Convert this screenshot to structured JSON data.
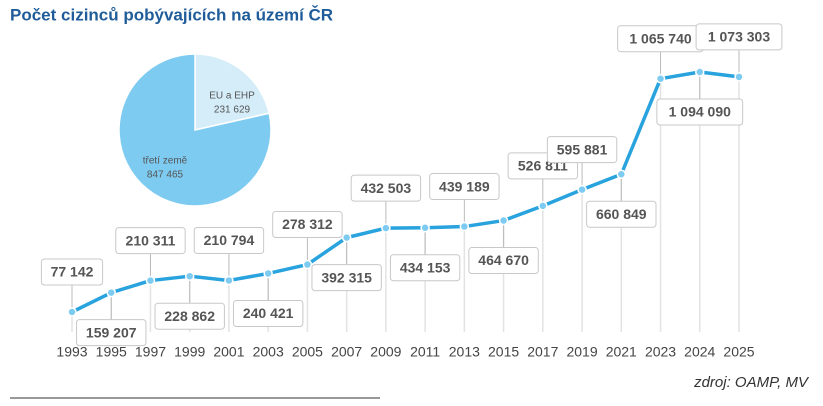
{
  "chart_data": [
    {
      "type": "line",
      "title": "Počet cizinců pobývajících na území ČR",
      "source": "zdroj: OAMP, MV",
      "categories": [
        "1993",
        "1995",
        "1997",
        "1999",
        "2001",
        "2003",
        "2005",
        "2007",
        "2009",
        "2011",
        "2013",
        "2015",
        "2017",
        "2019",
        "2021",
        "2023",
        "2024",
        "2025"
      ],
      "values": [
        77142,
        159207,
        210311,
        228862,
        210794,
        240421,
        278312,
        392315,
        432503,
        434153,
        439189,
        464670,
        526811,
        595881,
        660849,
        1065740,
        1094090,
        1073303
      ],
      "value_labels": [
        "77 142",
        "159 207",
        "210 311",
        "228 862",
        "210 794",
        "240 421",
        "278 312",
        "392 315",
        "432 503",
        "434 153",
        "439 189",
        "464 670",
        "526 811",
        "595 881",
        "660 849",
        "1 065 740",
        "1 094 090",
        "1 073 303"
      ],
      "color": "#29a3de"
    },
    {
      "type": "pie",
      "categories": [
        "EU a EHP",
        "třetí země"
      ],
      "values": [
        231629,
        847465
      ],
      "value_labels": [
        "231 629",
        "847 465"
      ],
      "colors": [
        "#d4edf9",
        "#7ecbf1"
      ]
    }
  ]
}
